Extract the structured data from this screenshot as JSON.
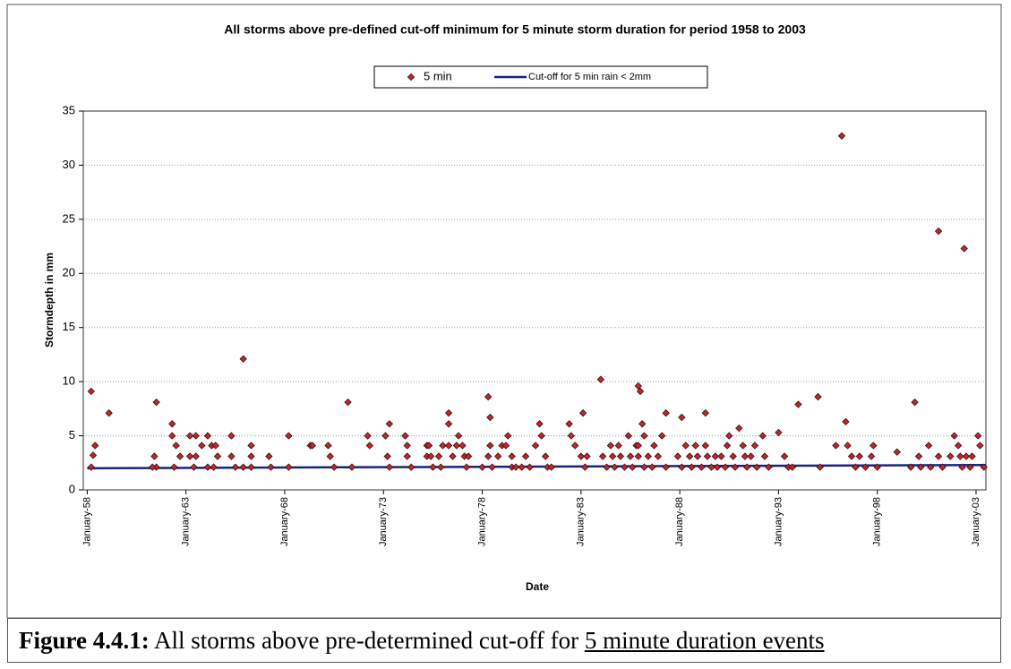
{
  "chart_data": {
    "type": "scatter",
    "title": "All storms above pre-defined cut-off minimum for 5 minute storm duration for period 1958 to 2003",
    "x_label": "Date",
    "y_label": "Stormdepth in mm",
    "xlim": [
      1957.8,
      2003.5
    ],
    "xticks": [
      {
        "value": 1958,
        "label": "January-58"
      },
      {
        "value": 1963,
        "label": "January-63"
      },
      {
        "value": 1968,
        "label": "January-68"
      },
      {
        "value": 1973,
        "label": "January-73"
      },
      {
        "value": 1978,
        "label": "January-78"
      },
      {
        "value": 1983,
        "label": "January-83"
      },
      {
        "value": 1988,
        "label": "January-88"
      },
      {
        "value": 1993,
        "label": "January-93"
      },
      {
        "value": 1998,
        "label": "January-98"
      },
      {
        "value": 2003,
        "label": "January-03"
      }
    ],
    "ylim": [
      0,
      35
    ],
    "yticks": [
      0,
      5,
      10,
      15,
      20,
      25,
      30,
      35
    ],
    "grid": true,
    "legend": "top",
    "series": [
      {
        "name": "5 min",
        "type": "scatter",
        "color": "#c0282d",
        "x": [
          1958.2,
          1958.4,
          1958.3,
          1958.2,
          1959.1,
          1961.5,
          1961.4,
          1961.5,
          1961.3,
          1962.3,
          1962.3,
          1962.5,
          1962.7,
          1962.4,
          1963.2,
          1963.5,
          1963.2,
          1963.5,
          1963.4,
          1963.8,
          1964.1,
          1964.3,
          1964.5,
          1964.6,
          1964.4,
          1964.1,
          1965.3,
          1965.3,
          1965.5,
          1965.9,
          1965.9,
          1966.3,
          1966.3,
          1966.3,
          1967.2,
          1967.3,
          1968.2,
          1968.2,
          1969.3,
          1969.4,
          1970.2,
          1970.3,
          1970.5,
          1971.2,
          1971.4,
          1972.2,
          1972.3,
          1973.1,
          1973.3,
          1973.2,
          1973.3,
          1974.1,
          1974.2,
          1974.2,
          1974.4,
          1975.2,
          1975.3,
          1975.2,
          1975.5,
          1975.4,
          1975.8,
          1976.0,
          1975.9,
          1976.3,
          1976.3,
          1976.3,
          1976.5,
          1976.7,
          1976.8,
          1977.0,
          1977.1,
          1977.2,
          1977.3,
          1978.0,
          1978.3,
          1978.4,
          1978.4,
          1978.3,
          1978.5,
          1978.8,
          1979.0,
          1979.2,
          1979.3,
          1979.5,
          1979.5,
          1979.7,
          1980.0,
          1980.2,
          1980.4,
          1980.7,
          1980.9,
          1981.0,
          1981.2,
          1981.3,
          1981.5,
          1982.4,
          1982.5,
          1982.7,
          1983.0,
          1983.1,
          1983.2,
          1983.3,
          1984.0,
          1984.1,
          1984.3,
          1984.5,
          1984.6,
          1984.7,
          1984.9,
          1985.0,
          1985.2,
          1985.4,
          1985.5,
          1985.6,
          1985.8,
          1985.9,
          1985.9,
          1986.2,
          1985.9,
          1986.0,
          1986.1,
          1986.2,
          1986.4,
          1986.6,
          1986.7,
          1986.9,
          1987.1,
          1987.3,
          1987.3,
          1988.1,
          1987.9,
          1988.1,
          1988.3,
          1988.5,
          1988.6,
          1988.8,
          1988.9,
          1989.1,
          1989.3,
          1989.3,
          1989.4,
          1989.6,
          1989.8,
          1989.9,
          1990.1,
          1990.3,
          1990.4,
          1990.5,
          1990.7,
          1990.8,
          1991.0,
          1991.2,
          1991.3,
          1991.4,
          1991.6,
          1991.8,
          1991.9,
          1992.2,
          1992.3,
          1992.5,
          1993.0,
          1993.3,
          1993.5,
          1993.7,
          1994.0,
          1995.0,
          1995.1,
          1995.9,
          1996.2,
          1996.4,
          1996.5,
          1996.7,
          1996.9,
          1997.1,
          1997.4,
          1997.7,
          1997.8,
          1998.0,
          1999.0,
          1999.7,
          1999.9,
          2000.1,
          2000.2,
          2000.6,
          2000.7,
          2001.1,
          2001.1,
          2001.3,
          2001.7,
          2001.9,
          2002.1,
          2002.2,
          2002.3,
          2002.4,
          2002.5,
          2002.7,
          2002.8,
          2003.1,
          2003.2,
          2003.4
        ],
        "values": [
          9.1,
          4.1,
          3.2,
          2.1,
          7.1,
          8.1,
          3.1,
          2.1,
          2.1,
          6.1,
          5.0,
          4.1,
          3.1,
          2.1,
          5.0,
          5.0,
          3.1,
          3.1,
          2.1,
          4.1,
          5.0,
          4.1,
          4.1,
          3.1,
          2.1,
          2.1,
          5.0,
          3.1,
          2.1,
          12.1,
          2.1,
          4.1,
          3.1,
          2.1,
          3.1,
          2.1,
          5.0,
          2.1,
          4.1,
          4.1,
          4.1,
          3.1,
          2.1,
          8.1,
          2.1,
          5.0,
          4.1,
          5.0,
          6.1,
          3.1,
          2.1,
          5.0,
          4.1,
          3.1,
          2.1,
          4.1,
          4.1,
          3.1,
          2.1,
          3.1,
          3.1,
          4.1,
          2.1,
          6.1,
          7.1,
          4.1,
          3.1,
          4.1,
          5.0,
          4.1,
          3.1,
          2.1,
          3.1,
          2.1,
          8.6,
          6.7,
          4.1,
          3.1,
          2.1,
          3.1,
          4.1,
          4.1,
          5.0,
          3.1,
          2.1,
          2.1,
          2.1,
          3.1,
          2.1,
          4.1,
          6.1,
          5.0,
          3.1,
          2.1,
          2.1,
          6.1,
          5.0,
          4.1,
          3.1,
          7.1,
          2.1,
          3.1,
          10.2,
          3.1,
          2.1,
          4.1,
          3.1,
          2.1,
          4.1,
          3.1,
          2.1,
          5.0,
          3.1,
          2.1,
          4.1,
          3.1,
          4.1,
          2.1,
          9.6,
          9.1,
          6.1,
          5.0,
          3.1,
          2.1,
          4.1,
          3.1,
          5.0,
          2.1,
          7.1,
          6.7,
          3.1,
          2.1,
          4.1,
          3.1,
          2.1,
          4.1,
          3.1,
          2.1,
          7.1,
          4.1,
          3.1,
          2.1,
          3.1,
          2.1,
          3.1,
          2.1,
          4.1,
          5.0,
          3.1,
          2.1,
          5.7,
          4.1,
          3.1,
          2.1,
          3.1,
          4.1,
          2.1,
          5.0,
          3.1,
          2.1,
          5.3,
          3.1,
          2.1,
          2.1,
          7.9,
          8.6,
          2.1,
          4.1,
          32.7,
          6.3,
          4.1,
          3.1,
          2.1,
          3.1,
          2.1,
          3.1,
          4.1,
          2.1,
          3.5,
          2.1,
          8.1,
          3.1,
          2.1,
          4.1,
          2.1,
          23.9,
          3.1,
          2.1,
          3.1,
          5.0,
          4.1,
          3.1,
          2.1,
          22.3,
          3.1,
          2.1,
          3.1,
          5.0,
          4.1,
          2.1
        ]
      },
      {
        "name": "Cut-off for 5 min rain < 2mm",
        "type": "line",
        "color": "#1a237e",
        "x": [
          1958,
          2003.5
        ],
        "values": [
          2,
          2.3
        ]
      }
    ]
  },
  "caption": {
    "label": "Figure 4.4.1:",
    "text": "All storms above pre-determined cut-off for",
    "underlined": "5 minute duration events"
  }
}
